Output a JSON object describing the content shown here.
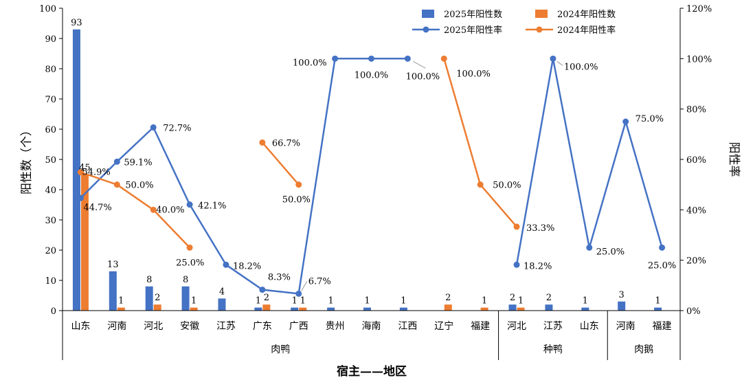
{
  "chart_data": {
    "type": "bar+line",
    "xlabel": "宿主——地区",
    "ylabel": "阳性数（个）",
    "y2label": "阳性率",
    "ylim": [
      0,
      100
    ],
    "yticks": [
      "0",
      "10",
      "20",
      "30",
      "40",
      "50",
      "60",
      "70",
      "80",
      "90",
      "100"
    ],
    "y2lim": [
      0,
      1.2
    ],
    "y2ticks": [
      "0%",
      "20%",
      "40%",
      "60%",
      "80%",
      "100%",
      "120%"
    ],
    "categories": [
      "山东",
      "河南",
      "河北",
      "安徽",
      "江苏",
      "广东",
      "广西",
      "贵州",
      "海南",
      "江西",
      "辽宁",
      "福建",
      "河北",
      "江苏",
      "山东",
      "河南",
      "福建"
    ],
    "groups": [
      {
        "name": "肉鸭",
        "span": [
          0,
          11
        ]
      },
      {
        "name": "种鸭",
        "span": [
          12,
          14
        ]
      },
      {
        "name": "肉鹅",
        "span": [
          15,
          16
        ]
      }
    ],
    "colors": {
      "blue": "#4472C4",
      "orange": "#ED7D31"
    },
    "legend": [
      {
        "label": "2025年阳性数",
        "kind": "bar",
        "color": "#4472C4"
      },
      {
        "label": "2024年阳性数",
        "kind": "bar",
        "color": "#ED7D31"
      },
      {
        "label": "2025年阳性率",
        "kind": "line",
        "color": "#4472C4"
      },
      {
        "label": "2024年阳性率",
        "kind": "line",
        "color": "#ED7D31"
      }
    ],
    "bars2025": [
      93,
      13,
      8,
      8,
      4,
      1,
      1,
      1,
      1,
      1,
      null,
      null,
      2,
      2,
      1,
      3,
      1
    ],
    "bars2025_labels": [
      "93",
      "13",
      "8",
      "8",
      "4",
      "1",
      "1",
      "1",
      "1",
      "1",
      "",
      "",
      "2",
      "2",
      "1",
      "3",
      "1"
    ],
    "bars2024": [
      45,
      1,
      2,
      1,
      null,
      2,
      1,
      null,
      null,
      null,
      2,
      1,
      1,
      null,
      null,
      null,
      null
    ],
    "bars2024_labels": [
      "45",
      "1",
      "2",
      "1",
      "",
      "2",
      "1",
      "",
      "",
      "",
      "2",
      "1",
      "1",
      "",
      "",
      "",
      ""
    ],
    "rate2025_segments": [
      [
        [
          0,
          44.7
        ],
        [
          1,
          59.1
        ],
        [
          2,
          72.7
        ],
        [
          3,
          42.1
        ],
        [
          4,
          18.2
        ],
        [
          5,
          8.3
        ],
        [
          6,
          6.7
        ],
        [
          7,
          100.0
        ],
        [
          8,
          100.0
        ],
        [
          9,
          100.0
        ]
      ],
      [
        [
          12,
          18.2
        ],
        [
          13,
          100.0
        ],
        [
          14,
          25.0
        ],
        [
          15,
          75.0
        ],
        [
          16,
          25.0
        ]
      ]
    ],
    "rate2025_labels": [
      {
        "i": 0,
        "text": "44.7%"
      },
      {
        "i": 1,
        "text": "59.1%"
      },
      {
        "i": 2,
        "text": "72.7%"
      },
      {
        "i": 3,
        "text": "42.1%"
      },
      {
        "i": 4,
        "text": "18.2%"
      },
      {
        "i": 5,
        "text": "8.3%"
      },
      {
        "i": 6,
        "text": "6.7%"
      },
      {
        "i": 7,
        "text": "100.0%"
      },
      {
        "i": 8,
        "text": "100.0%"
      },
      {
        "i": 9,
        "text": "100.0%"
      },
      {
        "i": 12,
        "text": "18.2%"
      },
      {
        "i": 13,
        "text": "100.0%"
      },
      {
        "i": 14,
        "text": "25.0%"
      },
      {
        "i": 15,
        "text": "75.0%"
      },
      {
        "i": 16,
        "text": "25.0%"
      }
    ],
    "rate2024_segments": [
      [
        [
          0,
          54.9
        ],
        [
          1,
          50.0
        ],
        [
          2,
          40.0
        ],
        [
          3,
          25.0
        ]
      ],
      [
        [
          5,
          66.7
        ],
        [
          6,
          50.0
        ]
      ],
      [
        [
          10,
          100.0
        ],
        [
          11,
          50.0
        ],
        [
          12,
          33.3
        ]
      ]
    ],
    "rate2024_labels": [
      {
        "i": 0,
        "text": "54.9%"
      },
      {
        "i": 1,
        "text": "50.0%"
      },
      {
        "i": 2,
        "text": "40.0%"
      },
      {
        "i": 3,
        "text": "25.0%"
      },
      {
        "i": 5,
        "text": "66.7%"
      },
      {
        "i": 6,
        "text": "50.0%"
      },
      {
        "i": 10,
        "text": "100.0%"
      },
      {
        "i": 11,
        "text": "50.0%"
      },
      {
        "i": 12,
        "text": "33.3%"
      }
    ]
  }
}
